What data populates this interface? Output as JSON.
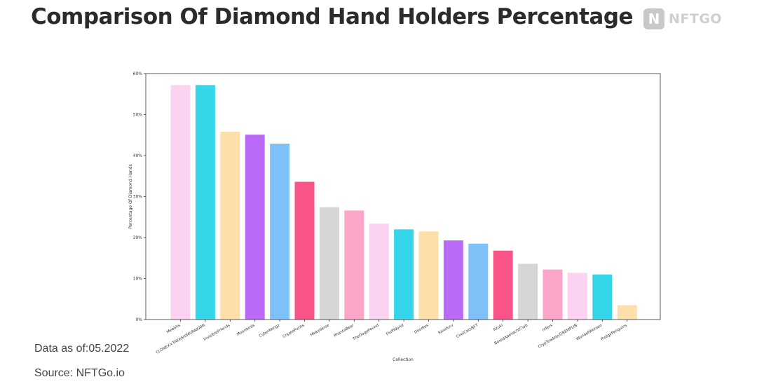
{
  "header": {
    "title": "Comparison Of Diamond Hand Holders Percentage",
    "logo_mark": "N",
    "logo_text": "NFTGO",
    "logo_icon": "nftgo-logo-icon"
  },
  "footer": {
    "date_note": "Data as of:05.2022",
    "source_note": "Source: NFTGo.io"
  },
  "chart_data": {
    "type": "bar",
    "xlabel": "Collection",
    "ylabel": "Percentage Of Diamond Hands",
    "ylim": [
      0,
      60
    ],
    "yticks": [
      "0%",
      "10%",
      "20%",
      "30%",
      "40%",
      "50%",
      "60%"
    ],
    "grid": false,
    "categories": [
      "Meebits",
      "CLONEX×TAKASHIMURAKAMI",
      "InvisibleFriends",
      "Moonbirds",
      "CyberKongz",
      "CryptoPunks",
      "MekaVerse",
      "PhantaBear",
      "TheDogePound",
      "FluffWorld",
      "Doodles",
      "Karafuru",
      "CoolCatsNFT",
      "Azuki",
      "BoredApeYachtClub",
      "mfers",
      "CrypToadzbyGREMPLIN",
      "WorldofWomen",
      "PudgyPenguins"
    ],
    "values": [
      57.2,
      57.2,
      45.8,
      45.1,
      42.9,
      33.6,
      27.4,
      26.6,
      23.4,
      22.0,
      21.5,
      19.3,
      18.5,
      16.8,
      13.6,
      12.2,
      11.4,
      11.0,
      3.5
    ],
    "colors": [
      "#fbd3f0",
      "#35d6ea",
      "#fde0a9",
      "#b96bf7",
      "#7ec0f8",
      "#f95487",
      "#d6d6d6",
      "#fba6c8",
      "#fbd3f0",
      "#35d6ea",
      "#fde0a9",
      "#b96bf7",
      "#7ec0f8",
      "#f95487",
      "#d6d6d6",
      "#fba6c8",
      "#fbd3f0",
      "#35d6ea",
      "#fde0a9"
    ]
  }
}
